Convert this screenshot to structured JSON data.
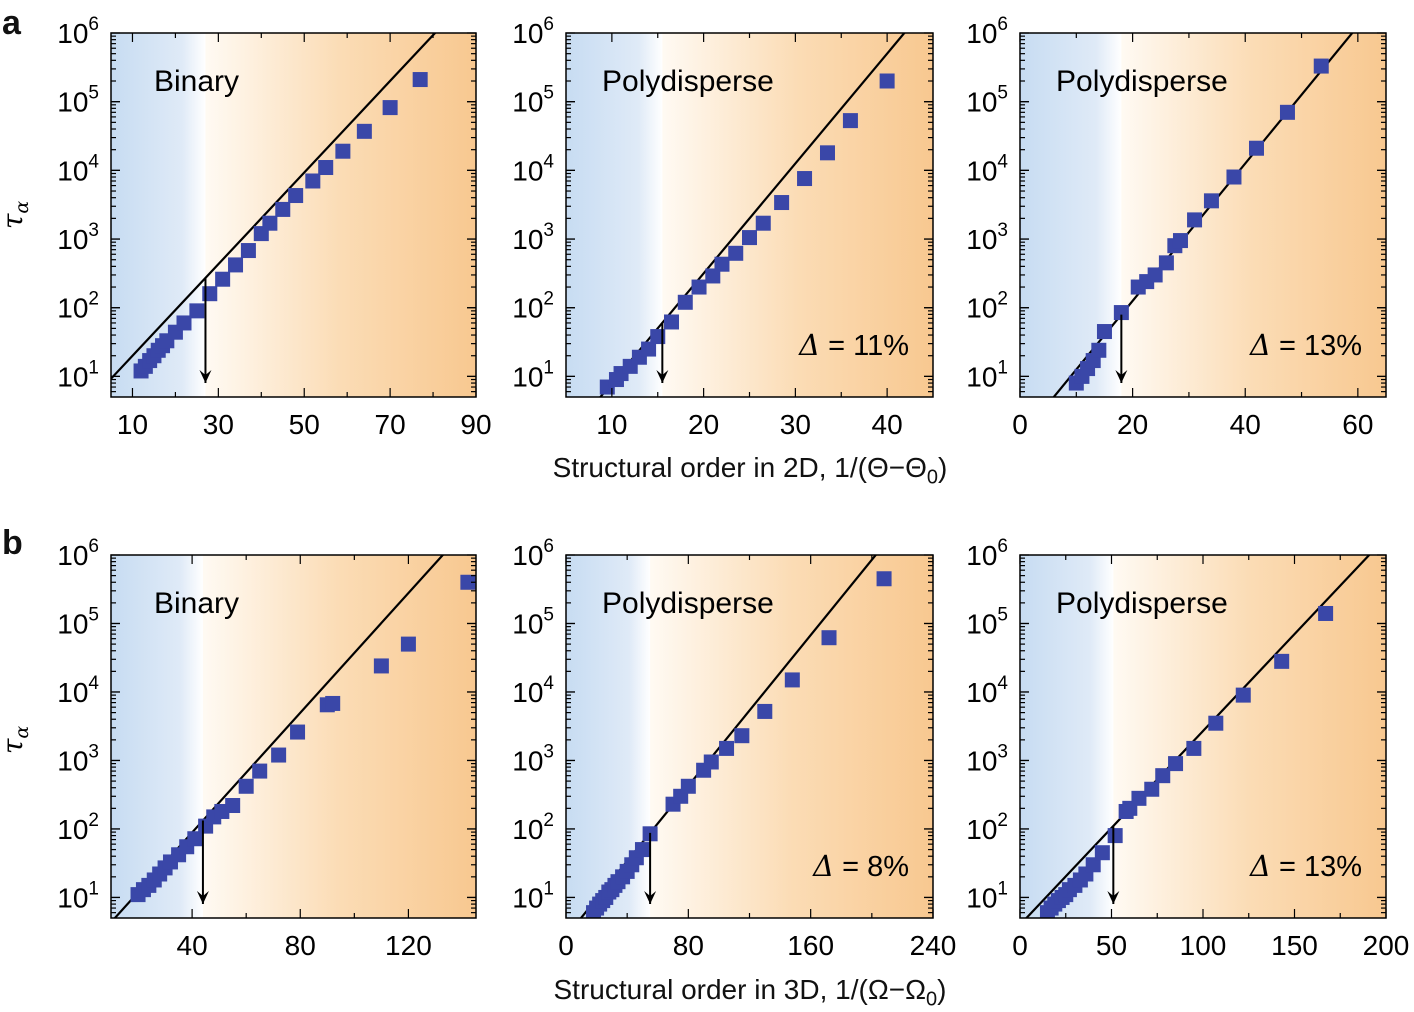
{
  "figure": {
    "panel_labels": [
      "a",
      "b"
    ],
    "row_xlabels": [
      {
        "text": "Structural order in 2D, 1/(Θ−Θ",
        "sub": "0",
        "close": ")"
      },
      {
        "text": "Structural order in 3D, 1/(Ω−Ω",
        "sub": "0",
        "close": ")"
      }
    ],
    "ylabel": "τα",
    "colors": {
      "marker": "#3a47a8",
      "line": "#000000",
      "blue": "#c7dcf2",
      "orange": "#f8c890"
    }
  },
  "chart_data": [
    {
      "type": "scatter",
      "row": "a",
      "title": "Binary",
      "annotation": "",
      "xlim": [
        5,
        90
      ],
      "xticks": [
        10,
        30,
        50,
        70,
        90
      ],
      "ylim_log10": [
        0.7,
        6
      ],
      "yticks": [
        "10^1",
        "10^2",
        "10^3",
        "10^4",
        "10^5",
        "10^6"
      ],
      "crossover_x": 27,
      "fit_line": {
        "slope_log10_per_x": 0.0667,
        "intercept_log10": 0.633
      },
      "series": [
        {
          "name": "data",
          "x": [
            12,
            13,
            14,
            15,
            16,
            17,
            18,
            20,
            22,
            25,
            28,
            31,
            34,
            37,
            40,
            42,
            45,
            48,
            52,
            55,
            59,
            64,
            70,
            77
          ],
          "y": [
            12,
            14,
            17,
            20,
            24,
            28,
            33,
            44,
            60,
            90,
            160,
            260,
            420,
            680,
            1200,
            1700,
            2700,
            4300,
            7000,
            11000,
            19000,
            37000,
            82000,
            210000
          ]
        }
      ]
    },
    {
      "type": "scatter",
      "row": "a",
      "title": "Polydisperse",
      "annotation": "Δ = 11%",
      "xlim": [
        5,
        45
      ],
      "xticks": [
        10,
        20,
        30,
        40
      ],
      "ylim_log10": [
        0.7,
        6
      ],
      "yticks": [
        "10^1",
        "10^2",
        "10^3",
        "10^4",
        "10^5",
        "10^6"
      ],
      "crossover_x": 15.5,
      "fit_line": {
        "slope_log10_per_x": 0.16,
        "intercept_log10": -0.7
      },
      "series": [
        {
          "name": "data",
          "x": [
            9.5,
            10.5,
            11,
            12,
            13,
            14,
            15,
            16.5,
            18,
            19.5,
            21,
            22,
            23.5,
            25,
            26.5,
            28.5,
            31,
            33.5,
            36,
            40
          ],
          "y": [
            7,
            9,
            11,
            14,
            19,
            25,
            38,
            62,
            120,
            200,
            290,
            430,
            620,
            1050,
            1700,
            3400,
            7600,
            18000,
            53000,
            200000
          ]
        }
      ]
    },
    {
      "type": "scatter",
      "row": "a",
      "title": "Polydisperse",
      "annotation": "Δ = 13%",
      "xlim": [
        0,
        65
      ],
      "xticks": [
        0,
        20,
        40,
        60
      ],
      "ylim_log10": [
        0.7,
        6
      ],
      "yticks": [
        "10^1",
        "10^2",
        "10^3",
        "10^4",
        "10^5",
        "10^6"
      ],
      "crossover_x": 18,
      "fit_line": {
        "slope_log10_per_x": 0.1,
        "intercept_log10": 0.1
      },
      "series": [
        {
          "name": "data",
          "x": [
            10,
            11,
            12,
            13,
            14,
            15,
            18,
            21,
            22.5,
            24,
            26,
            27.5,
            28.5,
            31,
            34,
            38,
            42,
            47.5,
            53.5
          ],
          "y": [
            8,
            10,
            13,
            17,
            24,
            45,
            85,
            200,
            240,
            300,
            450,
            800,
            950,
            1900,
            3600,
            8000,
            21000,
            70000,
            330000
          ]
        }
      ]
    },
    {
      "type": "scatter",
      "row": "b",
      "title": "Binary",
      "annotation": "",
      "xlim": [
        10,
        145
      ],
      "xticks": [
        40,
        80,
        120
      ],
      "ylim_log10": [
        0.7,
        6
      ],
      "yticks": [
        "10^1",
        "10^2",
        "10^3",
        "10^4",
        "10^5",
        "10^6"
      ],
      "crossover_x": 44,
      "fit_line": {
        "slope_log10_per_x": 0.0437,
        "intercept_log10": 0.2
      },
      "series": [
        {
          "name": "data",
          "x": [
            20,
            22,
            24,
            26,
            28,
            30,
            32,
            35,
            38,
            41,
            45,
            48,
            51,
            55,
            60,
            65,
            72,
            79,
            90,
            92,
            110,
            120,
            142
          ],
          "y": [
            11,
            13,
            15,
            18,
            22,
            27,
            33,
            42,
            55,
            72,
            110,
            150,
            180,
            220,
            420,
            700,
            1200,
            2600,
            6500,
            6800,
            24000,
            50000,
            400000
          ]
        }
      ]
    },
    {
      "type": "scatter",
      "row": "b",
      "title": "Polydisperse",
      "annotation": "Δ = 8%",
      "xlim": [
        0,
        240
      ],
      "xticks": [
        0,
        80,
        160,
        240
      ],
      "ylim_log10": [
        0.7,
        6
      ],
      "yticks": [
        "10^1",
        "10^2",
        "10^3",
        "10^4",
        "10^5",
        "10^6"
      ],
      "crossover_x": 55,
      "fit_line": {
        "slope_log10_per_x": 0.0275,
        "intercept_log10": 0.43
      },
      "series": [
        {
          "name": "data",
          "x": [
            18,
            20,
            22,
            24,
            26,
            28,
            30,
            32,
            34,
            37,
            40,
            43,
            46,
            50,
            55,
            70,
            75,
            80,
            90,
            95,
            105,
            115,
            130,
            148,
            172,
            208
          ],
          "y": [
            6,
            7,
            8,
            9,
            10,
            12,
            13,
            15,
            17,
            20,
            24,
            30,
            38,
            50,
            85,
            230,
            300,
            420,
            720,
            950,
            1500,
            2300,
            5200,
            15000,
            62000,
            450000
          ]
        }
      ]
    },
    {
      "type": "scatter",
      "row": "b",
      "title": "Polydisperse",
      "annotation": "Δ = 13%",
      "xlim": [
        0,
        200
      ],
      "xticks": [
        0,
        50,
        100,
        150,
        200
      ],
      "ylim_log10": [
        0.7,
        6
      ],
      "yticks": [
        "10^1",
        "10^2",
        "10^3",
        "10^4",
        "10^5",
        "10^6"
      ],
      "crossover_x": 51,
      "fit_line": {
        "slope_log10_per_x": 0.0283,
        "intercept_log10": 0.6
      },
      "series": [
        {
          "name": "data",
          "x": [
            15,
            17,
            19,
            21,
            23,
            25,
            27,
            30,
            33,
            36,
            40,
            45,
            52,
            58,
            60,
            65,
            72,
            78,
            85,
            95,
            107,
            122,
            143,
            167
          ],
          "y": [
            6,
            7,
            8,
            9,
            10,
            11,
            13,
            15,
            18,
            22,
            30,
            45,
            80,
            180,
            200,
            280,
            380,
            600,
            900,
            1500,
            3500,
            9000,
            28000,
            140000
          ]
        }
      ]
    }
  ]
}
